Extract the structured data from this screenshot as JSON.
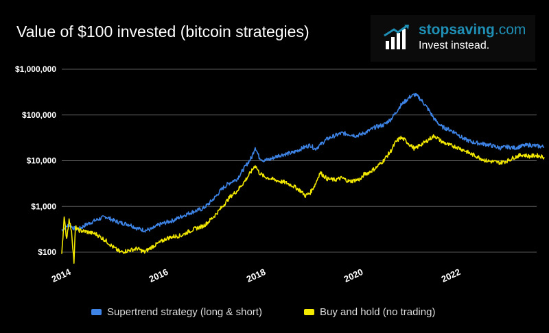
{
  "header": {
    "title": "Value of $100 invested (bitcoin strategies)"
  },
  "brand": {
    "name_part1": "stopsaving",
    "name_part2": ".com",
    "tagline": "Invest instead.",
    "color": "#1f8fb5"
  },
  "chart_data": {
    "type": "line",
    "title": "Value of $100 invested (bitcoin strategies)",
    "xlabel": "",
    "ylabel": "",
    "y_scale": "log",
    "ylim": [
      100,
      1000000
    ],
    "xlim": [
      2014.0,
      2023.95
    ],
    "x_ticks": [
      2014,
      2016,
      2018,
      2020,
      2022
    ],
    "x_tick_labels": [
      "2014",
      "2016",
      "2018",
      "2020",
      "2022"
    ],
    "y_ticks": [
      100,
      1000,
      10000,
      100000,
      1000000
    ],
    "y_tick_labels": [
      "$100",
      "$1,000",
      "$10,000",
      "$100,000",
      "$1,000,000"
    ],
    "grid": true,
    "legend_position": "bottom",
    "series": [
      {
        "name": "Supertrend strategy (long & short)",
        "color": "#3d84e6",
        "x": [
          2014.0,
          2014.08,
          2014.15,
          2014.25,
          2014.35,
          2014.5,
          2014.7,
          2014.9,
          2015.05,
          2015.2,
          2015.4,
          2015.55,
          2015.7,
          2015.85,
          2016.0,
          2016.15,
          2016.3,
          2016.45,
          2016.6,
          2016.75,
          2016.9,
          2017.0,
          2017.15,
          2017.3,
          2017.45,
          2017.6,
          2017.75,
          2017.9,
          2017.97,
          2018.05,
          2018.15,
          2018.3,
          2018.45,
          2018.6,
          2018.75,
          2018.9,
          2019.0,
          2019.1,
          2019.2,
          2019.3,
          2019.45,
          2019.6,
          2019.75,
          2019.9,
          2020.05,
          2020.15,
          2020.2,
          2020.3,
          2020.45,
          2020.6,
          2020.75,
          2020.85,
          2020.95,
          2021.05,
          2021.15,
          2021.25,
          2021.35,
          2021.45,
          2021.55,
          2021.65,
          2021.8,
          2021.95,
          2022.1,
          2022.25,
          2022.4,
          2022.55,
          2022.7,
          2022.85,
          2023.0,
          2023.15,
          2023.3,
          2023.45,
          2023.6,
          2023.75,
          2023.9
        ],
        "values": [
          300,
          350,
          400,
          330,
          320,
          400,
          500,
          600,
          500,
          440,
          400,
          330,
          300,
          320,
          400,
          450,
          500,
          600,
          700,
          800,
          900,
          1100,
          1600,
          2500,
          3300,
          4000,
          7000,
          12000,
          20000,
          12000,
          10000,
          11000,
          13000,
          14000,
          15000,
          18000,
          20000,
          22000,
          18000,
          22000,
          30000,
          35000,
          40000,
          38000,
          35000,
          38000,
          40000,
          45000,
          55000,
          60000,
          80000,
          110000,
          160000,
          200000,
          250000,
          280000,
          230000,
          170000,
          120000,
          80000,
          55000,
          48000,
          40000,
          30000,
          26000,
          24000,
          23000,
          21000,
          19000,
          20000,
          19000,
          21000,
          22000,
          21000,
          20000
        ]
      },
      {
        "name": "Buy and hold (no trading)",
        "color": "#f2e800",
        "x": [
          2014.0,
          2014.05,
          2014.1,
          2014.15,
          2014.2,
          2014.25,
          2014.28,
          2014.35,
          2014.5,
          2014.7,
          2014.9,
          2015.05,
          2015.2,
          2015.4,
          2015.55,
          2015.7,
          2015.85,
          2016.0,
          2016.15,
          2016.3,
          2016.45,
          2016.6,
          2016.75,
          2016.9,
          2017.0,
          2017.15,
          2017.3,
          2017.45,
          2017.6,
          2017.75,
          2017.9,
          2017.97,
          2018.05,
          2018.15,
          2018.3,
          2018.45,
          2018.6,
          2018.75,
          2018.9,
          2019.0,
          2019.1,
          2019.2,
          2019.3,
          2019.45,
          2019.6,
          2019.75,
          2019.9,
          2020.05,
          2020.15,
          2020.2,
          2020.3,
          2020.45,
          2020.6,
          2020.75,
          2020.85,
          2020.95,
          2021.05,
          2021.15,
          2021.25,
          2021.35,
          2021.45,
          2021.55,
          2021.65,
          2021.8,
          2021.95,
          2022.1,
          2022.25,
          2022.4,
          2022.55,
          2022.7,
          2022.85,
          2023.0,
          2023.15,
          2023.3,
          2023.45,
          2023.6,
          2023.75,
          2023.9
        ],
        "values": [
          100,
          550,
          200,
          500,
          300,
          60,
          350,
          300,
          280,
          250,
          180,
          130,
          100,
          110,
          120,
          100,
          130,
          160,
          200,
          220,
          230,
          280,
          330,
          370,
          450,
          650,
          1000,
          1600,
          2200,
          3500,
          6000,
          8000,
          5500,
          4500,
          4000,
          3600,
          3300,
          2800,
          2200,
          1700,
          2000,
          3000,
          5500,
          4000,
          3800,
          4200,
          3500,
          3800,
          4000,
          5000,
          5500,
          7000,
          10000,
          16000,
          25000,
          32000,
          28000,
          22000,
          18000,
          22000,
          25000,
          30000,
          35000,
          26000,
          22000,
          20000,
          17000,
          14000,
          12000,
          10000,
          9500,
          9000,
          10000,
          12000,
          13500,
          12500,
          13000,
          12000
        ]
      }
    ]
  }
}
